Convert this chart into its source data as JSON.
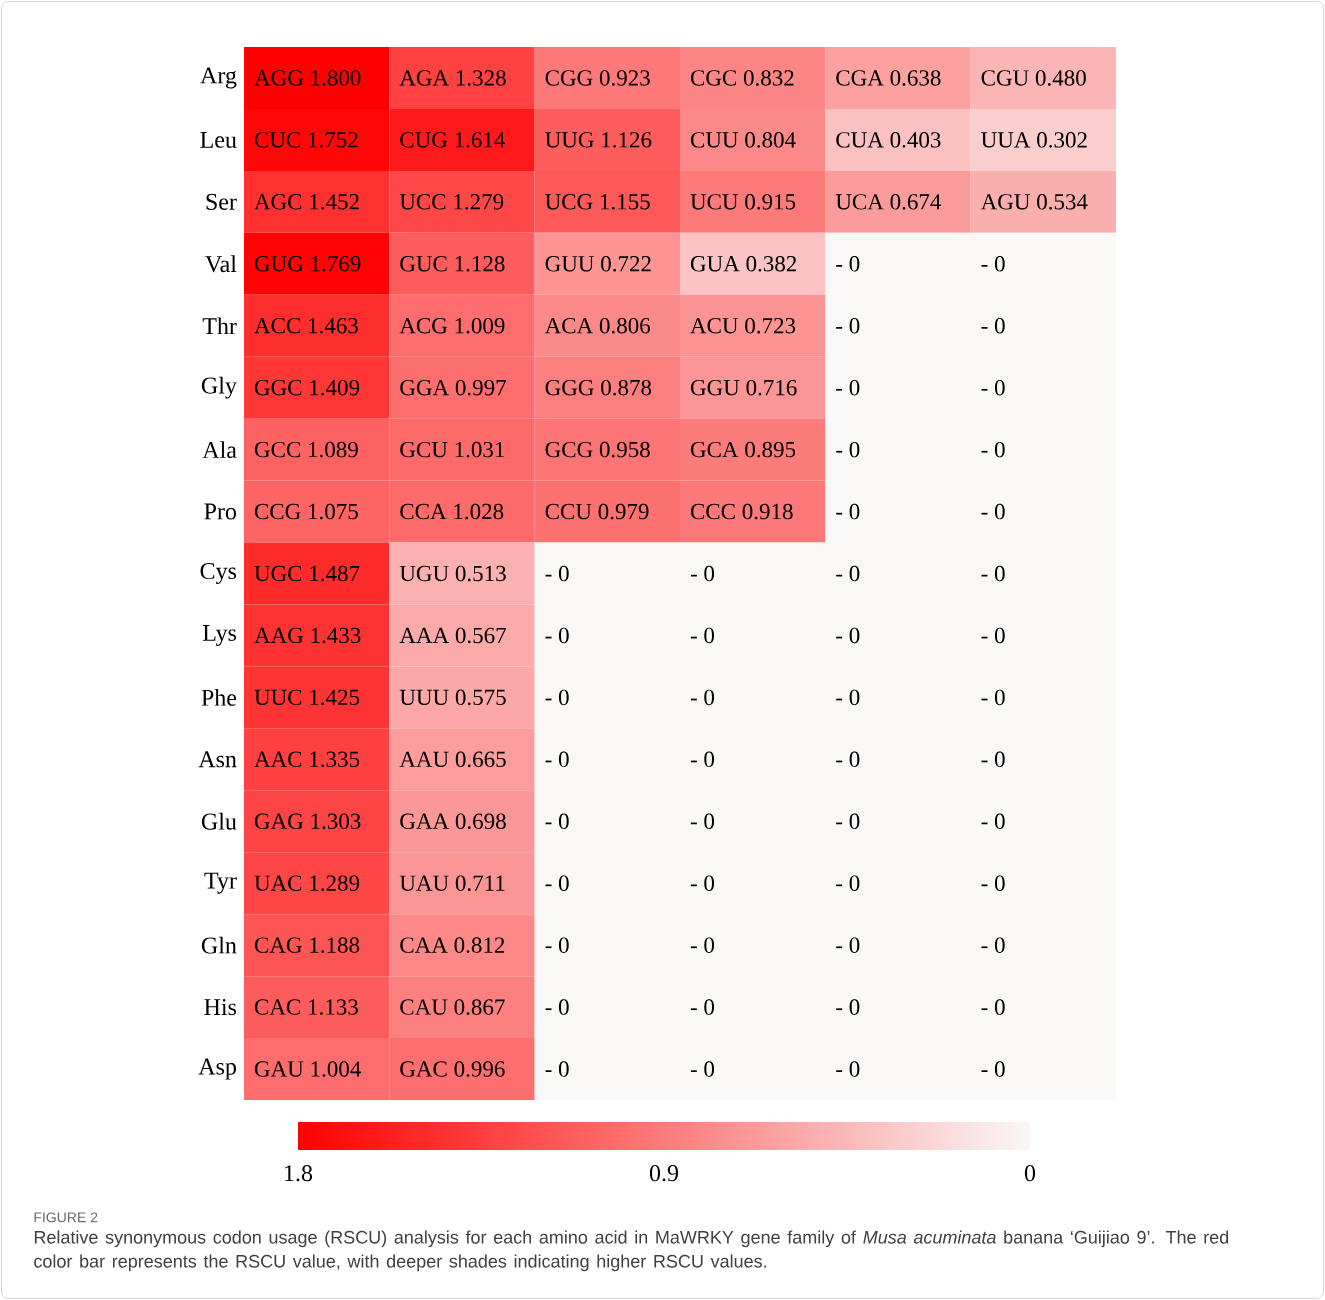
{
  "chart_data": {
    "type": "heatmap",
    "categories": [
      null,
      null,
      null,
      null,
      null,
      null
    ],
    "y_categories": [
      "Arg",
      "Leu",
      "Ser",
      "Val",
      "Thr",
      "Gly",
      "Ala",
      "Pro",
      "Cys",
      "Lys",
      "Phe",
      "Asn",
      "Glu",
      "Tyr",
      "Gln",
      "His",
      "Asp"
    ],
    "cells": [
      [
        1.8,
        1.328,
        0.923,
        0.832,
        0.638,
        0.48
      ],
      [
        1.752,
        1.614,
        1.126,
        0.804,
        0.403,
        0.302
      ],
      [
        1.452,
        1.279,
        1.155,
        0.915,
        0.674,
        0.534
      ],
      [
        1.769,
        1.128,
        0.722,
        0.382,
        0,
        0
      ],
      [
        1.463,
        1.009,
        0.806,
        0.723,
        0,
        0
      ],
      [
        1.409,
        0.997,
        0.878,
        0.716,
        0,
        0
      ],
      [
        1.089,
        1.031,
        0.958,
        0.895,
        0,
        0
      ],
      [
        1.075,
        1.028,
        0.979,
        0.918,
        0,
        0
      ],
      [
        1.487,
        0.513,
        0,
        0,
        0,
        0
      ],
      [
        1.433,
        0.567,
        0,
        0,
        0,
        0
      ],
      [
        1.425,
        0.575,
        0,
        0,
        0,
        0
      ],
      [
        1.335,
        0.665,
        0,
        0,
        0,
        0
      ],
      [
        1.303,
        0.698,
        0,
        0,
        0,
        0
      ],
      [
        1.289,
        0.711,
        0,
        0,
        0,
        0
      ],
      [
        1.188,
        0.812,
        0,
        0,
        0,
        0
      ],
      [
        1.133,
        0.867,
        0,
        0,
        0,
        0
      ],
      [
        1.004,
        0.996,
        0,
        0,
        0,
        0
      ]
    ],
    "cell_labels": [
      [
        "AGG 1.800",
        "AGA 1.328",
        "CGG 0.923",
        "CGC 0.832",
        "CGA 0.638",
        "CGU 0.480"
      ],
      [
        "CUC 1.752",
        "CUG 1.614",
        "UUG 1.126",
        "CUU 0.804",
        "CUA 0.403",
        "UUA 0.302"
      ],
      [
        "AGC 1.452",
        "UCC 1.279",
        "UCG 1.155",
        "UCU 0.915",
        "UCA 0.674",
        "AGU 0.534"
      ],
      [
        "GUG 1.769",
        "GUC 1.128",
        "GUU 0.722",
        "GUA 0.382",
        "- 0",
        "- 0"
      ],
      [
        "ACC 1.463",
        "ACG 1.009",
        "ACA 0.806",
        "ACU 0.723",
        "- 0",
        "- 0"
      ],
      [
        "GGC 1.409",
        "GGA 0.997",
        "GGG 0.878",
        "GGU 0.716",
        "- 0",
        "- 0"
      ],
      [
        "GCC 1.089",
        "GCU 1.031",
        "GCG 0.958",
        "GCA 0.895",
        "- 0",
        "- 0"
      ],
      [
        "CCG 1.075",
        "CCA 1.028",
        "CCU 0.979",
        "CCC 0.918",
        "- 0",
        "- 0"
      ],
      [
        "UGC 1.487",
        "UGU 0.513",
        "- 0",
        "- 0",
        "- 0",
        "- 0"
      ],
      [
        "AAG 1.433",
        "AAA 0.567",
        "- 0",
        "- 0",
        "- 0",
        "- 0"
      ],
      [
        "UUC 1.425",
        "UUU 0.575",
        "- 0",
        "- 0",
        "- 0",
        "- 0"
      ],
      [
        "AAC 1.335",
        "AAU 0.665",
        "- 0",
        "- 0",
        "- 0",
        "- 0"
      ],
      [
        "GAG 1.303",
        "GAA 0.698",
        "- 0",
        "- 0",
        "- 0",
        "- 0"
      ],
      [
        "UAC 1.289",
        "UAU 0.711",
        "- 0",
        "- 0",
        "- 0",
        "- 0"
      ],
      [
        "CAG 1.188",
        "CAA 0.812",
        "- 0",
        "- 0",
        "- 0",
        "- 0"
      ],
      [
        "CAC 1.133",
        "CAU 0.867",
        "- 0",
        "- 0",
        "- 0",
        "- 0"
      ],
      [
        "GAU 1.004",
        "GAC 0.996",
        "- 0",
        "- 0",
        "- 0",
        "- 0"
      ]
    ],
    "clim": [
      1.8,
      0
    ],
    "cticks": [
      1.8,
      0.9,
      0
    ],
    "annotations": [
      "FIGURE 2",
      "Relative synonymous codon usage (RSCU) analysis for each amino acid in MaWRKY gene family of *Musa acuminata* banana ‘Guijiao 9’. The red color bar represents the RSCU value, with deeper shades indicating higher RSCU values."
    ]
  }
}
